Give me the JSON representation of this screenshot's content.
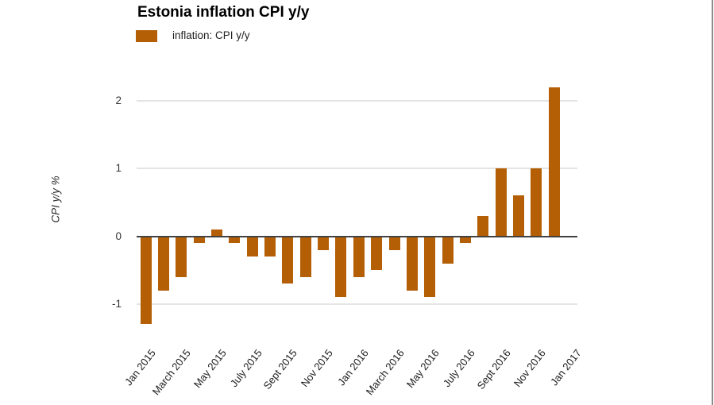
{
  "page": {
    "background": "#ffffff",
    "right_border_color": "#8c8c8c"
  },
  "chart_data": {
    "type": "bar",
    "title": "Estonia inflation CPI y/y",
    "xlabel": "",
    "ylabel": "CPI y/y %",
    "series_name": "inflation: CPI y/y",
    "legend_position": "top-left",
    "grid": true,
    "categories": [
      "Jan 2015",
      "Feb 2015",
      "Mar 2015",
      "Apr 2015",
      "May 2015",
      "Jun 2015",
      "Jul 2015",
      "Aug 2015",
      "Sep 2015",
      "Oct 2015",
      "Nov 2015",
      "Dec 2015",
      "Jan 2016",
      "Feb 2016",
      "Mar 2016",
      "Apr 2016",
      "May 2016",
      "Jun 2016",
      "Jul 2016",
      "Aug 2016",
      "Sep 2016",
      "Oct 2016",
      "Nov 2016",
      "Dec 2016",
      "Jan 2017"
    ],
    "values": [
      -1.3,
      -0.8,
      -0.6,
      -0.1,
      0.1,
      -0.1,
      -0.3,
      -0.3,
      -0.7,
      -0.6,
      -0.2,
      -0.9,
      -0.6,
      -0.5,
      -0.2,
      -0.8,
      -0.9,
      -0.4,
      -0.1,
      0.3,
      1.0,
      0.6,
      1.0,
      2.2,
      null
    ],
    "x_tick_labels": [
      "Jan 2015",
      "March 2015",
      "May 2015",
      "July 2015",
      "Sept 2015",
      "Nov 2015",
      "Jan 2016",
      "March 2016",
      "May 2016",
      "July 2016",
      "Sept 2016",
      "Nov 2016",
      "Jan 2017"
    ],
    "x_tick_every": 2,
    "y_ticks": [
      2,
      1,
      0,
      -1
    ],
    "ylim": [
      -1.5,
      2.25
    ],
    "bar_color": "#b45f06",
    "grid_color": "#e4e4e4",
    "zero_line_color": "#424242"
  }
}
